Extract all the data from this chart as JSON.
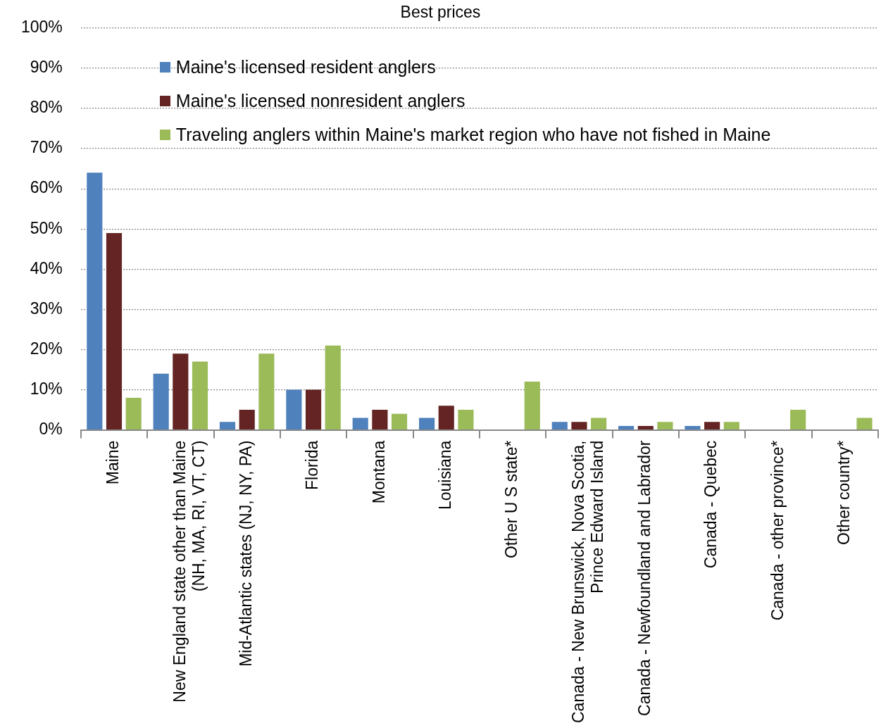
{
  "chart_data": {
    "type": "bar",
    "title": "Best prices",
    "categories": [
      "Maine",
      "New England state other than Maine\n(NH, MA, RI, VT, CT)",
      "Mid-Atlantic states (NJ, NY, PA)",
      "Florida",
      "Montana",
      "Louisiana",
      "Other U S state*",
      "Canada - New Brunswick, Nova Scotia,\nPrince Edward Island",
      "Canada - Newfoundland and Labrador",
      "Canada - Quebec",
      "Canada - other province*",
      "Other country*"
    ],
    "series": [
      {
        "name": "Maine's licensed resident anglers",
        "color": "#4f81bd",
        "values": [
          64,
          14,
          2,
          10,
          3,
          3,
          0,
          2,
          1,
          1,
          0,
          0
        ]
      },
      {
        "name": "Maine's licensed nonresident anglers",
        "color": "#632423",
        "values": [
          49,
          19,
          5,
          10,
          5,
          6,
          0,
          2,
          1,
          2,
          0,
          0
        ]
      },
      {
        "name": "Traveling anglers within Maine's market region who have not fished in Maine",
        "color": "#9bbb59",
        "values": [
          8,
          17,
          19,
          21,
          4,
          5,
          12,
          3,
          2,
          2,
          5,
          3
        ]
      }
    ],
    "ylim": [
      0,
      100
    ],
    "yticks": [
      {
        "value": 0,
        "label": "0%"
      },
      {
        "value": 10,
        "label": "10%"
      },
      {
        "value": 20,
        "label": "20%"
      },
      {
        "value": 30,
        "label": "30%"
      },
      {
        "value": 40,
        "label": "40%"
      },
      {
        "value": 50,
        "label": "50%"
      },
      {
        "value": 60,
        "label": "60%"
      },
      {
        "value": 70,
        "label": "70%"
      },
      {
        "value": 80,
        "label": "80%"
      },
      {
        "value": 90,
        "label": "90%"
      },
      {
        "value": 100,
        "label": "100%"
      }
    ],
    "grid": "y",
    "legend": "top left"
  }
}
